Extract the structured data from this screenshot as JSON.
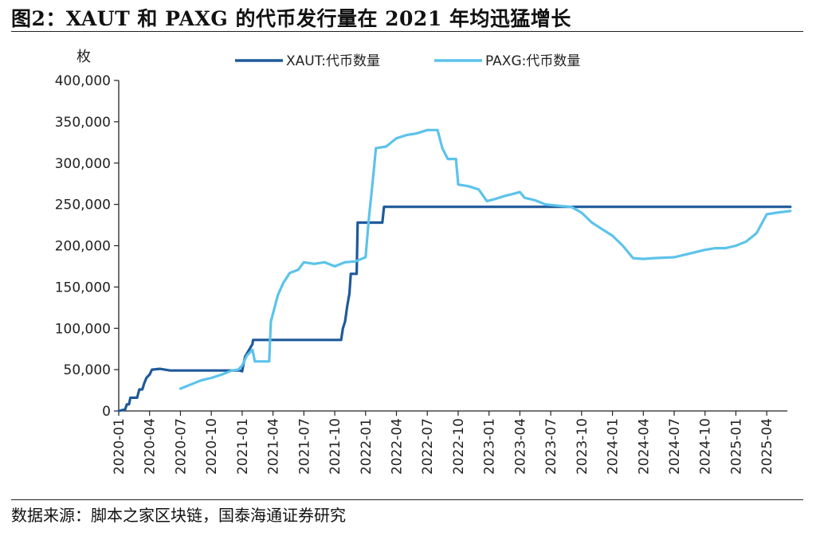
{
  "header": {
    "title": "图2：XAUT 和 PAXG 的代币发行量在 2021 年均迅猛增长"
  },
  "footer": {
    "source": "数据来源：脚本之家区块链，国泰海通证券研究"
  },
  "chart_data": {
    "type": "line",
    "title": "图2：XAUT 和 PAXG 的代币发行量在 2021 年均迅猛增长",
    "ylabel": "枚",
    "ylim": [
      0,
      400000
    ],
    "yticks": [
      0,
      50000,
      100000,
      150000,
      200000,
      250000,
      300000,
      350000,
      400000
    ],
    "ytick_labels": [
      "0",
      "50,000",
      "100,000",
      "150,000",
      "200,000",
      "250,000",
      "300,000",
      "350,000",
      "400,000"
    ],
    "xlim": [
      "2020-01",
      "2025-06"
    ],
    "xticks": [
      "2020-01",
      "2020-04",
      "2020-07",
      "2020-10",
      "2021-01",
      "2021-04",
      "2021-07",
      "2021-10",
      "2022-01",
      "2022-04",
      "2022-07",
      "2022-10",
      "2023-01",
      "2023-04",
      "2023-07",
      "2023-10",
      "2024-01",
      "2024-04",
      "2024-07",
      "2024-10",
      "2025-01",
      "2025-04"
    ],
    "grid": false,
    "legend": "top-center",
    "colors": {
      "XAUT": "#1f5a9a",
      "PAXG": "#5cc3ea"
    },
    "series": [
      {
        "name": "XAUT:代币数量",
        "color": "#1f5a9a",
        "points": [
          [
            "2020-01-01",
            0
          ],
          [
            "2020-01-20",
            2000
          ],
          [
            "2020-01-25",
            8000
          ],
          [
            "2020-02-01",
            8000
          ],
          [
            "2020-02-05",
            16000
          ],
          [
            "2020-02-25",
            16000
          ],
          [
            "2020-03-01",
            26000
          ],
          [
            "2020-03-10",
            26000
          ],
          [
            "2020-03-15",
            33000
          ],
          [
            "2020-03-22",
            40000
          ],
          [
            "2020-04-01",
            44000
          ],
          [
            "2020-04-08",
            50000
          ],
          [
            "2020-05-01",
            51000
          ],
          [
            "2020-06-01",
            49000
          ],
          [
            "2020-08-01",
            49000
          ],
          [
            "2020-11-01",
            49000
          ],
          [
            "2020-12-25",
            49000
          ],
          [
            "2021-01-01",
            48000
          ],
          [
            "2021-01-05",
            57000
          ],
          [
            "2021-01-10",
            66000
          ],
          [
            "2021-01-20",
            73000
          ],
          [
            "2021-02-01",
            81000
          ],
          [
            "2021-02-03",
            86000
          ],
          [
            "2021-04-01",
            86000
          ],
          [
            "2021-07-01",
            86000
          ],
          [
            "2021-10-20",
            86000
          ],
          [
            "2021-10-25",
            100000
          ],
          [
            "2021-11-01",
            108000
          ],
          [
            "2021-11-08",
            128000
          ],
          [
            "2021-11-14",
            142000
          ],
          [
            "2021-11-18",
            166000
          ],
          [
            "2021-12-05",
            166000
          ],
          [
            "2021-12-08",
            228000
          ],
          [
            "2022-02-20",
            228000
          ],
          [
            "2022-02-25",
            247000
          ],
          [
            "2022-07-01",
            247000
          ],
          [
            "2023-01-01",
            247000
          ],
          [
            "2024-01-01",
            247000
          ],
          [
            "2025-01-01",
            247000
          ],
          [
            "2025-06-10",
            247000
          ]
        ]
      },
      {
        "name": "PAXG:代币数量",
        "color": "#5cc3ea",
        "points": [
          [
            "2020-07-01",
            27000
          ],
          [
            "2020-08-01",
            32000
          ],
          [
            "2020-09-01",
            37000
          ],
          [
            "2020-10-01",
            40000
          ],
          [
            "2020-11-01",
            44000
          ],
          [
            "2020-12-01",
            49000
          ],
          [
            "2020-12-20",
            50000
          ],
          [
            "2021-01-01",
            55000
          ],
          [
            "2021-01-15",
            67000
          ],
          [
            "2021-02-01",
            74000
          ],
          [
            "2021-02-08",
            60000
          ],
          [
            "2021-03-20",
            60000
          ],
          [
            "2021-03-25",
            108000
          ],
          [
            "2021-04-15",
            140000
          ],
          [
            "2021-05-01",
            155000
          ],
          [
            "2021-05-20",
            167000
          ],
          [
            "2021-06-15",
            171000
          ],
          [
            "2021-07-01",
            180000
          ],
          [
            "2021-08-01",
            178000
          ],
          [
            "2021-09-01",
            180000
          ],
          [
            "2021-10-01",
            175000
          ],
          [
            "2021-11-01",
            180000
          ],
          [
            "2021-12-01",
            181000
          ],
          [
            "2022-01-01",
            186000
          ],
          [
            "2022-01-10",
            230000
          ],
          [
            "2022-01-25",
            290000
          ],
          [
            "2022-02-01",
            318000
          ],
          [
            "2022-03-01",
            320000
          ],
          [
            "2022-04-01",
            330000
          ],
          [
            "2022-05-01",
            334000
          ],
          [
            "2022-06-01",
            336000
          ],
          [
            "2022-07-01",
            340000
          ],
          [
            "2022-08-01",
            340000
          ],
          [
            "2022-08-15",
            318000
          ],
          [
            "2022-09-01",
            305000
          ],
          [
            "2022-09-25",
            305000
          ],
          [
            "2022-10-01",
            274000
          ],
          [
            "2022-11-01",
            272000
          ],
          [
            "2022-12-01",
            268000
          ],
          [
            "2022-12-25",
            254000
          ],
          [
            "2023-01-15",
            256000
          ],
          [
            "2023-02-15",
            260000
          ],
          [
            "2023-03-15",
            263000
          ],
          [
            "2023-04-01",
            265000
          ],
          [
            "2023-04-15",
            258000
          ],
          [
            "2023-05-15",
            255000
          ],
          [
            "2023-06-15",
            250000
          ],
          [
            "2023-08-01",
            248000
          ],
          [
            "2023-09-01",
            247000
          ],
          [
            "2023-10-01",
            240000
          ],
          [
            "2023-11-01",
            228000
          ],
          [
            "2023-12-01",
            220000
          ],
          [
            "2024-01-01",
            212000
          ],
          [
            "2024-02-01",
            200000
          ],
          [
            "2024-03-01",
            185000
          ],
          [
            "2024-04-01",
            184000
          ],
          [
            "2024-05-01",
            185000
          ],
          [
            "2024-07-01",
            186000
          ],
          [
            "2024-08-01",
            189000
          ],
          [
            "2024-09-01",
            192000
          ],
          [
            "2024-10-01",
            195000
          ],
          [
            "2024-11-01",
            197000
          ],
          [
            "2024-12-01",
            197000
          ],
          [
            "2025-01-01",
            200000
          ],
          [
            "2025-02-01",
            205000
          ],
          [
            "2025-03-01",
            215000
          ],
          [
            "2025-04-01",
            238000
          ],
          [
            "2025-05-01",
            240000
          ],
          [
            "2025-06-10",
            242000
          ]
        ]
      }
    ]
  }
}
